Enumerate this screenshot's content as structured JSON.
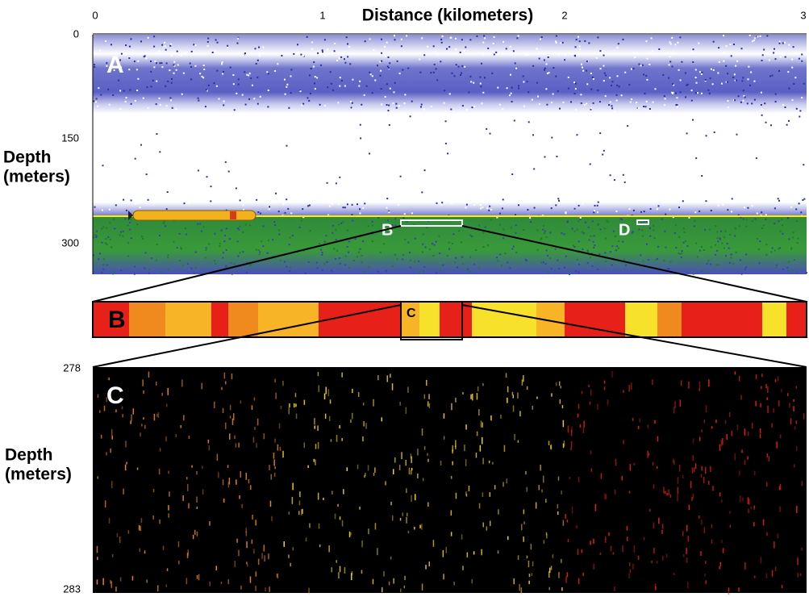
{
  "header": {
    "title": "Distance (kilometers)"
  },
  "x_axis": {
    "ticks": [
      "0",
      "1",
      "2",
      "3"
    ]
  },
  "panel_a": {
    "label": "A",
    "y_ticks": [
      "0",
      "150",
      "300"
    ],
    "y_label": [
      "Depth",
      "(meters)"
    ],
    "markers": [
      "B",
      "D"
    ]
  },
  "panel_b": {
    "label": "B",
    "marker": "C"
  },
  "panel_c": {
    "label": "C",
    "y_ticks": [
      "278",
      "283"
    ],
    "y_label": [
      "Depth",
      "(meters)"
    ]
  }
}
